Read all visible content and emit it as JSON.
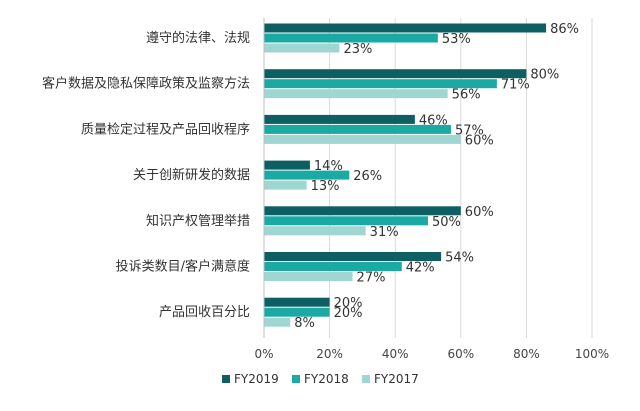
{
  "chart_data": {
    "type": "bar",
    "orientation": "horizontal",
    "categories": [
      "遵守的法律、法规",
      "客户数据及隐私保障政策及监察方法",
      "质量检定过程及产品回收程序",
      "关于创新研发的数据",
      "知识产权管理举措",
      "投诉类数目/客户满意度",
      "产品回收百分比"
    ],
    "series": [
      {
        "name": "FY2019",
        "color": "#0e5f63",
        "values": [
          86,
          80,
          46,
          14,
          60,
          54,
          20
        ],
        "labels": [
          "86%",
          "80%",
          "46%",
          "14%",
          "60%",
          "54%",
          "20%"
        ]
      },
      {
        "name": "FY2018",
        "color": "#1aaaa3",
        "values": [
          53,
          71,
          57,
          26,
          50,
          42,
          20
        ],
        "labels": [
          "53%",
          "71%",
          "57%",
          "26%",
          "50%",
          "42%",
          "20%"
        ]
      },
      {
        "name": "FY2017",
        "color": "#9fd6d2",
        "values": [
          23,
          56,
          60,
          13,
          31,
          27,
          8
        ],
        "labels": [
          "23%",
          "56%",
          "60%",
          "13%",
          "31%",
          "27%",
          "8%"
        ]
      }
    ],
    "xlim": [
      0,
      100
    ],
    "ticks": [
      "0%",
      "20%",
      "40%",
      "60%",
      "80%",
      "100%"
    ],
    "grid": true,
    "legend_position": "bottom"
  }
}
